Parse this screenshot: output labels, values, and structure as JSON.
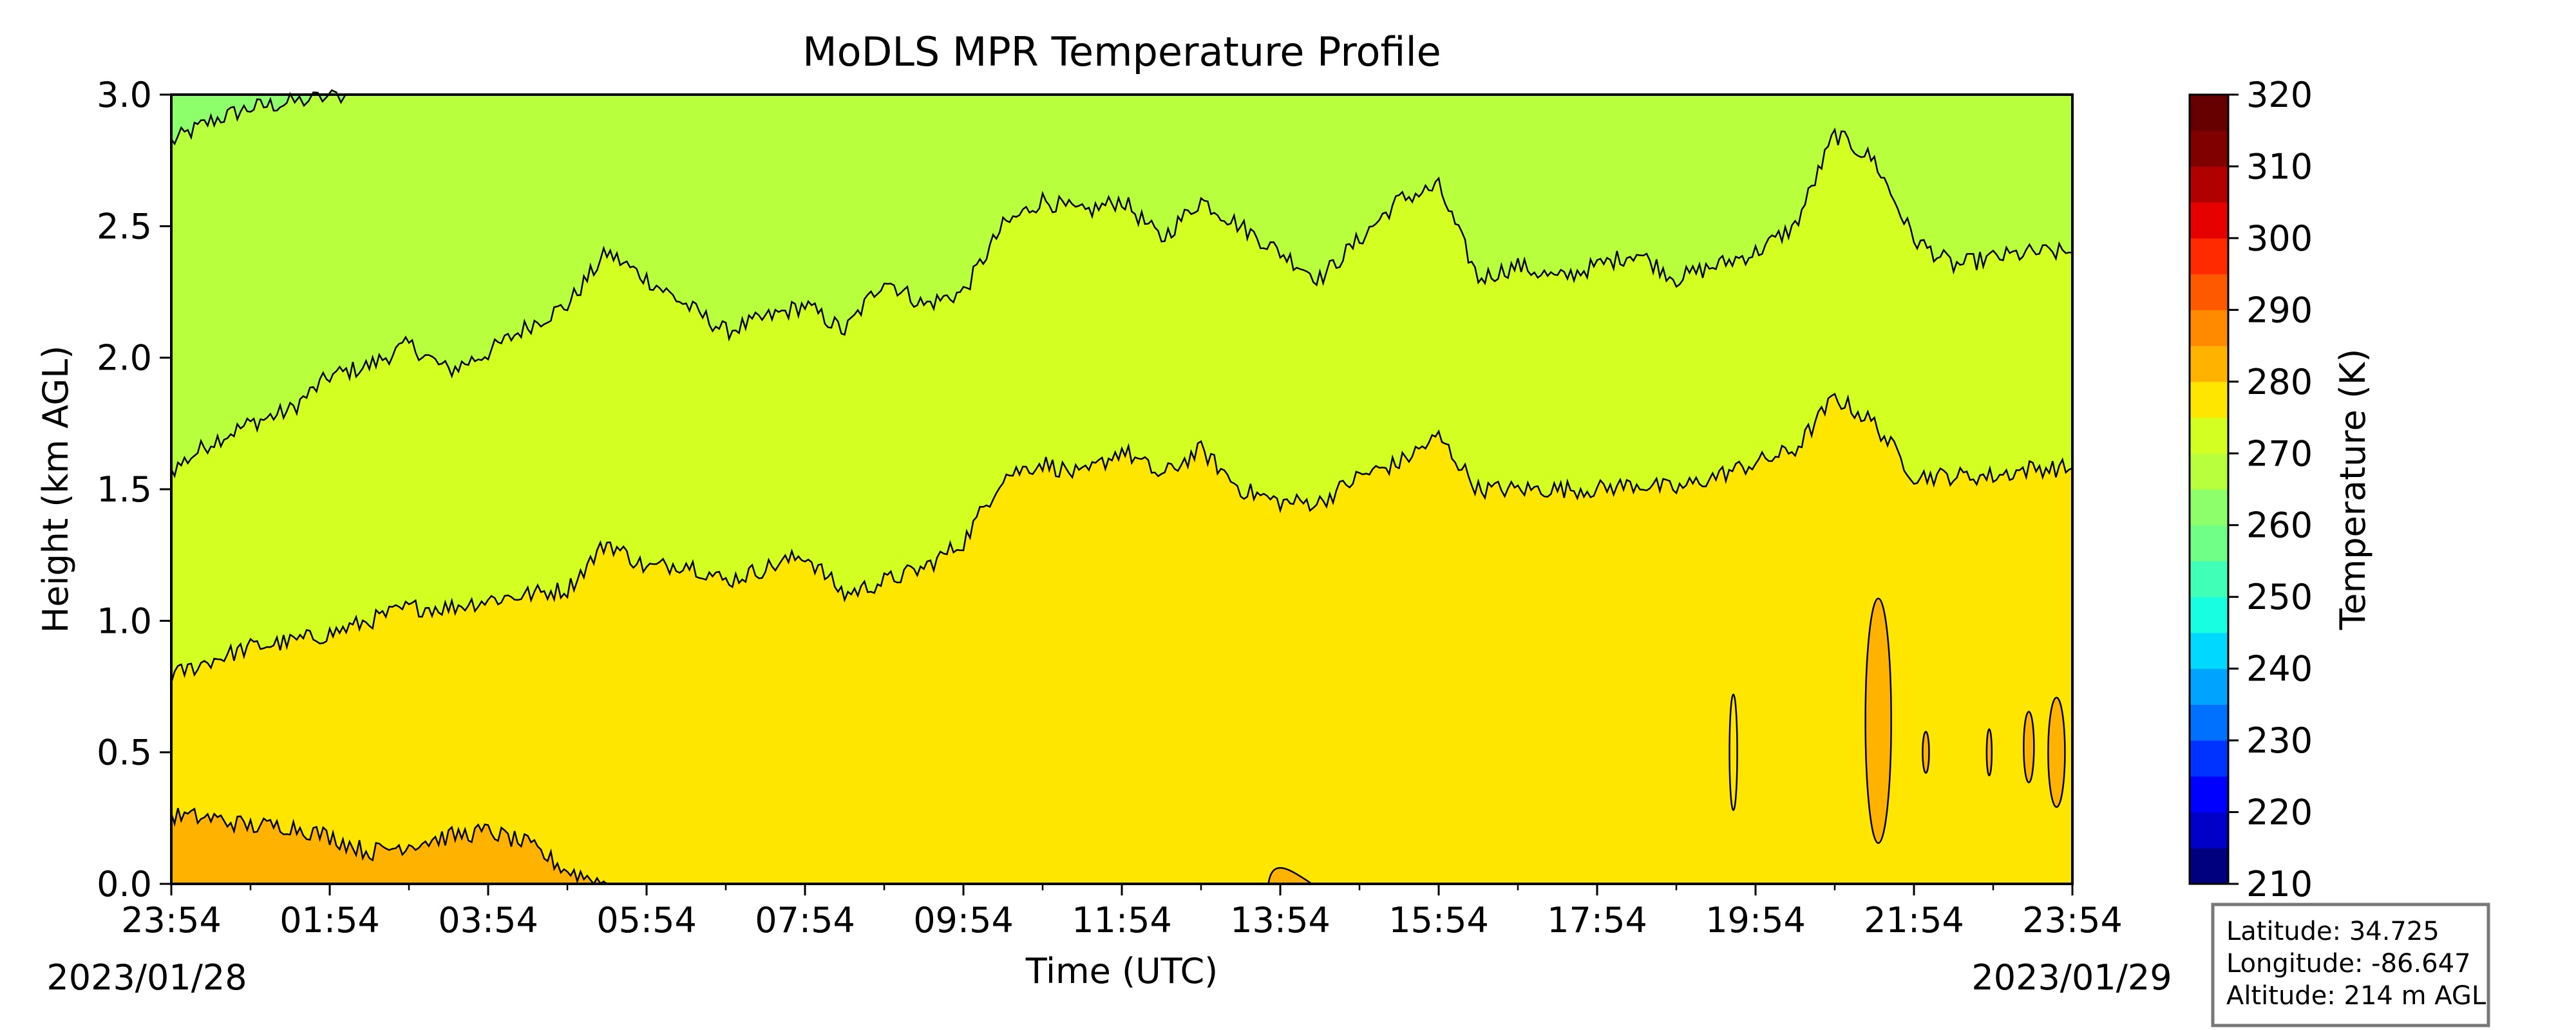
{
  "chart_data": {
    "type": "heatmap",
    "title": "MoDLS MPR Temperature Profile",
    "xlabel": "Time (UTC)",
    "ylabel": "Height (km AGL)",
    "x_ticks": [
      "23:54",
      "01:54",
      "03:54",
      "05:54",
      "07:54",
      "09:54",
      "11:54",
      "13:54",
      "15:54",
      "17:54",
      "19:54",
      "21:54",
      "23:54"
    ],
    "x_range_hours": [
      0,
      24
    ],
    "date_start": "2023/01/28",
    "date_end": "2023/01/29",
    "ylim": [
      0,
      3.0
    ],
    "y_ticks": [
      "0.0",
      "0.5",
      "1.0",
      "1.5",
      "2.0",
      "2.5",
      "3.0"
    ],
    "colorbar": {
      "label": "Temperature (K)",
      "range": [
        210,
        320
      ],
      "step": 5,
      "tick_labels": [
        "210",
        "220",
        "230",
        "240",
        "250",
        "260",
        "270",
        "280",
        "290",
        "300",
        "310",
        "320"
      ],
      "colors": [
        "#00007f",
        "#0000c8",
        "#0000ff",
        "#0033ff",
        "#0070ff",
        "#00a4ff",
        "#00d8ff",
        "#17ffe0",
        "#40ffb7",
        "#70ff87",
        "#8cff6b",
        "#b8ff3e",
        "#d4ff23",
        "#ffe600",
        "#ffb300",
        "#ff8a00",
        "#ff5900",
        "#ff2a00",
        "#e60000",
        "#b10000",
        "#800000",
        "#660000"
      ]
    },
    "contour_bands": [
      {
        "level_K": 265,
        "color": "#8cff6b"
      },
      {
        "level_K": 270,
        "color": "#b8ff3e"
      },
      {
        "level_K": 275,
        "color": "#d4ff23"
      },
      {
        "level_K": 280,
        "color": "#ffe600"
      },
      {
        "level_K": 285,
        "color": "#ffb300"
      }
    ],
    "contour_lines": [
      {
        "name": "275 K",
        "points": [
          [
            0,
            1.57
          ],
          [
            0.5,
            1.68
          ],
          [
            1,
            1.75
          ],
          [
            1.5,
            1.8
          ],
          [
            2,
            1.93
          ],
          [
            2.5,
            1.97
          ],
          [
            3,
            2.05
          ],
          [
            3.5,
            1.95
          ],
          [
            4,
            2.02
          ],
          [
            4.5,
            2.12
          ],
          [
            5,
            2.2
          ],
          [
            5.5,
            2.4
          ],
          [
            6,
            2.3
          ],
          [
            6.5,
            2.2
          ],
          [
            7,
            2.1
          ],
          [
            7.5,
            2.15
          ],
          [
            8,
            2.2
          ],
          [
            8.5,
            2.1
          ],
          [
            9,
            2.3
          ],
          [
            9.5,
            2.2
          ],
          [
            10,
            2.25
          ],
          [
            10.5,
            2.5
          ],
          [
            11,
            2.6
          ],
          [
            11.5,
            2.55
          ],
          [
            12,
            2.6
          ],
          [
            12.5,
            2.45
          ],
          [
            13,
            2.6
          ],
          [
            13.5,
            2.5
          ],
          [
            14,
            2.4
          ],
          [
            14.5,
            2.3
          ],
          [
            15,
            2.45
          ],
          [
            15.5,
            2.6
          ],
          [
            16,
            2.65
          ],
          [
            16.5,
            2.3
          ],
          [
            17,
            2.35
          ],
          [
            17.5,
            2.3
          ],
          [
            18,
            2.35
          ],
          [
            18.5,
            2.4
          ],
          [
            19,
            2.3
          ],
          [
            19.5,
            2.35
          ],
          [
            20,
            2.4
          ],
          [
            20.5,
            2.5
          ],
          [
            21,
            2.85
          ],
          [
            21.5,
            2.75
          ],
          [
            22,
            2.45
          ],
          [
            22.5,
            2.35
          ],
          [
            23,
            2.38
          ],
          [
            23.5,
            2.4
          ],
          [
            24,
            2.4
          ]
        ]
      },
      {
        "name": "280 K",
        "points": [
          [
            0,
            0.79
          ],
          [
            0.5,
            0.85
          ],
          [
            1,
            0.9
          ],
          [
            1.5,
            0.92
          ],
          [
            2,
            0.95
          ],
          [
            2.5,
            1.0
          ],
          [
            3,
            1.05
          ],
          [
            3.5,
            1.05
          ],
          [
            4,
            1.08
          ],
          [
            4.5,
            1.1
          ],
          [
            5,
            1.12
          ],
          [
            5.5,
            1.3
          ],
          [
            6,
            1.2
          ],
          [
            6.5,
            1.22
          ],
          [
            7,
            1.15
          ],
          [
            7.5,
            1.2
          ],
          [
            8,
            1.25
          ],
          [
            8.5,
            1.1
          ],
          [
            9,
            1.15
          ],
          [
            9.5,
            1.2
          ],
          [
            10,
            1.3
          ],
          [
            10.5,
            1.55
          ],
          [
            11,
            1.6
          ],
          [
            11.5,
            1.55
          ],
          [
            12,
            1.65
          ],
          [
            12.5,
            1.55
          ],
          [
            13,
            1.65
          ],
          [
            13.5,
            1.5
          ],
          [
            14,
            1.45
          ],
          [
            14.5,
            1.45
          ],
          [
            15,
            1.55
          ],
          [
            15.5,
            1.6
          ],
          [
            16,
            1.7
          ],
          [
            16.5,
            1.5
          ],
          [
            17,
            1.5
          ],
          [
            17.5,
            1.5
          ],
          [
            18,
            1.5
          ],
          [
            18.5,
            1.52
          ],
          [
            19,
            1.5
          ],
          [
            19.5,
            1.55
          ],
          [
            20,
            1.6
          ],
          [
            20.5,
            1.65
          ],
          [
            21,
            1.85
          ],
          [
            21.5,
            1.75
          ],
          [
            22,
            1.55
          ],
          [
            22.5,
            1.55
          ],
          [
            23,
            1.55
          ],
          [
            23.5,
            1.58
          ],
          [
            24,
            1.58
          ]
        ]
      },
      {
        "name": "285 K",
        "points": [
          [
            0,
            0.26
          ],
          [
            0.5,
            0.25
          ],
          [
            1,
            0.22
          ],
          [
            1.5,
            0.22
          ],
          [
            2,
            0.18
          ],
          [
            2.5,
            0.12
          ],
          [
            3,
            0.15
          ],
          [
            3.5,
            0.18
          ],
          [
            4,
            0.2
          ],
          [
            4.5,
            0.15
          ],
          [
            5,
            0.05
          ],
          [
            5.5,
            0.0
          ]
        ]
      }
    ],
    "info_box": [
      "Latitude: 34.725",
      "Longitude: -86.647",
      "Altitude: 214 m AGL"
    ]
  }
}
